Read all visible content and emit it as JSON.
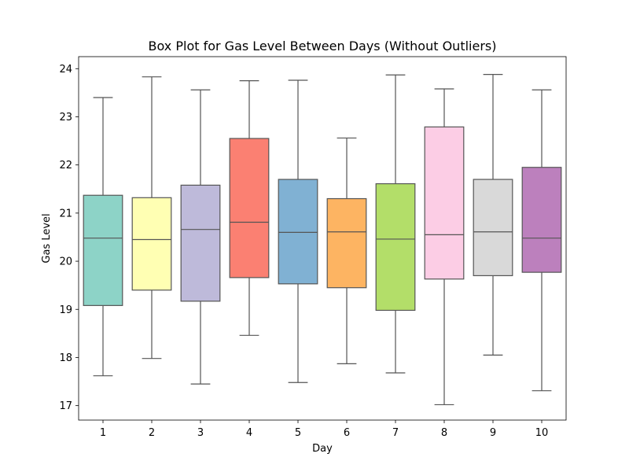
{
  "chart_data": {
    "type": "box",
    "title": "Box Plot for Gas Level Between Days (Without Outliers)",
    "xlabel": "Day",
    "ylabel": "Gas Level",
    "ylim": [
      16.7,
      24.25
    ],
    "yticks": [
      17,
      18,
      19,
      20,
      21,
      22,
      23,
      24
    ],
    "grid": false,
    "categories": [
      "1",
      "2",
      "3",
      "4",
      "5",
      "6",
      "7",
      "8",
      "9",
      "10"
    ],
    "boxes": [
      {
        "day": "1",
        "min": 17.62,
        "q1": 19.08,
        "median": 20.48,
        "q3": 21.37,
        "max": 23.4,
        "color": "#8dd3c7"
      },
      {
        "day": "2",
        "min": 17.98,
        "q1": 19.4,
        "median": 20.45,
        "q3": 21.32,
        "max": 23.83,
        "color": "#ffffb3"
      },
      {
        "day": "3",
        "min": 17.45,
        "q1": 19.17,
        "median": 20.66,
        "q3": 21.58,
        "max": 23.56,
        "color": "#bebada"
      },
      {
        "day": "4",
        "min": 18.46,
        "q1": 19.66,
        "median": 20.81,
        "q3": 22.55,
        "max": 23.75,
        "color": "#fb8072"
      },
      {
        "day": "5",
        "min": 17.48,
        "q1": 19.53,
        "median": 20.6,
        "q3": 21.7,
        "max": 23.76,
        "color": "#80b1d3"
      },
      {
        "day": "6",
        "min": 17.87,
        "q1": 19.45,
        "median": 20.61,
        "q3": 21.3,
        "max": 22.56,
        "color": "#fdb462"
      },
      {
        "day": "7",
        "min": 17.68,
        "q1": 18.98,
        "median": 20.46,
        "q3": 21.61,
        "max": 23.87,
        "color": "#b3de69"
      },
      {
        "day": "8",
        "min": 17.02,
        "q1": 19.63,
        "median": 20.55,
        "q3": 22.79,
        "max": 23.58,
        "color": "#fccde5"
      },
      {
        "day": "9",
        "min": 18.05,
        "q1": 19.7,
        "median": 20.61,
        "q3": 21.7,
        "max": 23.88,
        "color": "#d9d9d9"
      },
      {
        "day": "10",
        "min": 17.31,
        "q1": 19.77,
        "median": 20.48,
        "q3": 21.95,
        "max": 23.56,
        "color": "#bc80bd"
      }
    ]
  }
}
